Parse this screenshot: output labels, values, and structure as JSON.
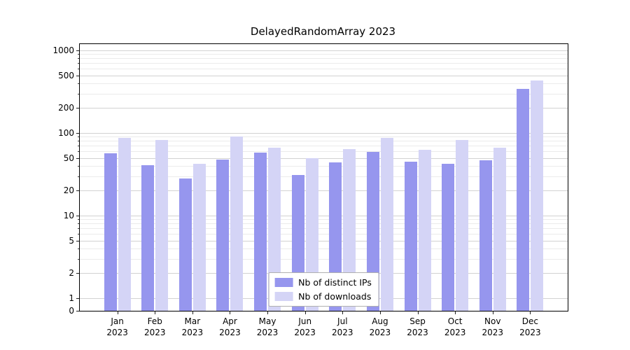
{
  "title": "DelayedRandomArray 2023",
  "chart_data": {
    "type": "bar",
    "yscale": "symlog",
    "grid": true,
    "legend_position": "lower center",
    "year_label": "2023",
    "categories": [
      "Jan",
      "Feb",
      "Mar",
      "Apr",
      "May",
      "Jun",
      "Jul",
      "Aug",
      "Sep",
      "Oct",
      "Nov",
      "Dec"
    ],
    "series": [
      {
        "name": "Nb of distinct IPs",
        "color": "#9696ee",
        "values": [
          57,
          41,
          28,
          48,
          58,
          31,
          44,
          59,
          45,
          42,
          47,
          340
        ]
      },
      {
        "name": "Nb of downloads",
        "color": "#d4d4f6",
        "values": [
          87,
          83,
          42,
          90,
          67,
          50,
          64,
          88,
          62,
          83,
          67,
          430
        ]
      }
    ],
    "yticks": [
      0,
      1,
      2,
      5,
      10,
      20,
      50,
      100,
      200,
      500,
      1000
    ],
    "minor_yticks": [
      3,
      4,
      6,
      7,
      8,
      9,
      30,
      40,
      60,
      70,
      80,
      90,
      300,
      400,
      600,
      700,
      800,
      900
    ],
    "ylim": [
      0,
      1200
    ],
    "xlabel": "",
    "ylabel": ""
  }
}
